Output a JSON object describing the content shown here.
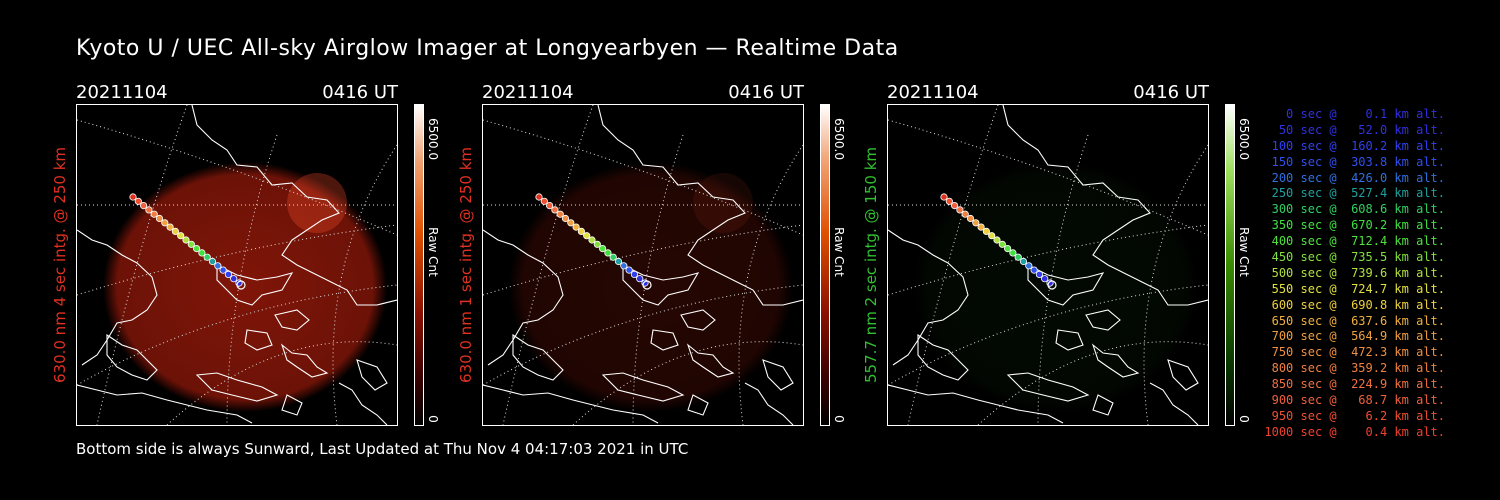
{
  "title": "Kyoto U / UEC All-sky Airglow Imager at Longyearbyen — Realtime Data",
  "footer": "Bottom side is always Sunward, Last Updated at Thu Nov  4 04:17:03 2021 in UTC",
  "panels": [
    {
      "date": "20211104",
      "time": "0416 UT",
      "ylabel": "630.0 nm 4 sec intg. @ 250 km",
      "ylabel_color": "#e03020",
      "cbar_max": "6500.0",
      "cbar_label": "Raw Cnt",
      "cbar_min": "0",
      "palette": "red",
      "intensity": 0.85
    },
    {
      "date": "20211104",
      "time": "0416 UT",
      "ylabel": "630.0 nm 1 sec intg. @ 250 km",
      "ylabel_color": "#e03020",
      "cbar_max": "6500.0",
      "cbar_label": "Raw Cnt",
      "cbar_min": "0",
      "palette": "red",
      "intensity": 0.25
    },
    {
      "date": "20211104",
      "time": "0416 UT",
      "ylabel": "557.7 nm 2 sec intg. @ 150 km",
      "ylabel_color": "#30c030",
      "cbar_max": "6500.0",
      "cbar_label": "Raw Cnt",
      "cbar_min": "0",
      "palette": "green",
      "intensity": 0.12
    }
  ],
  "legend": [
    {
      "text": "   0 sec @    0.1 km alt.",
      "color": "#3030e0"
    },
    {
      "text": "  50 sec @   52.0 km alt.",
      "color": "#3030e0"
    },
    {
      "text": " 100 sec @  160.2 km alt.",
      "color": "#3040f0"
    },
    {
      "text": " 150 sec @  303.8 km alt.",
      "color": "#3050f0"
    },
    {
      "text": " 200 sec @  426.0 km alt.",
      "color": "#3070e0"
    },
    {
      "text": " 250 sec @  527.4 km alt.",
      "color": "#20a0a0"
    },
    {
      "text": " 300 sec @  608.6 km alt.",
      "color": "#30d060"
    },
    {
      "text": " 350 sec @  670.2 km alt.",
      "color": "#40e040"
    },
    {
      "text": " 400 sec @  712.4 km alt.",
      "color": "#50e040"
    },
    {
      "text": " 450 sec @  735.5 km alt.",
      "color": "#80e040"
    },
    {
      "text": " 500 sec @  739.6 km alt.",
      "color": "#b0e040"
    },
    {
      "text": " 550 sec @  724.7 km alt.",
      "color": "#e0e040"
    },
    {
      "text": " 600 sec @  690.8 km alt.",
      "color": "#f0d040"
    },
    {
      "text": " 650 sec @  637.6 km alt.",
      "color": "#f0b040"
    },
    {
      "text": " 700 sec @  564.9 km alt.",
      "color": "#f0a040"
    },
    {
      "text": " 750 sec @  472.3 km alt.",
      "color": "#f09040"
    },
    {
      "text": " 800 sec @  359.2 km alt.",
      "color": "#f08040"
    },
    {
      "text": " 850 sec @  224.9 km alt.",
      "color": "#f07040"
    },
    {
      "text": " 900 sec @   68.7 km alt.",
      "color": "#f06040"
    },
    {
      "text": " 950 sec @    6.2 km alt.",
      "color": "#f05030"
    },
    {
      "text": "1000 sec @    0.4 km alt.",
      "color": "#f04030"
    }
  ],
  "colors": {
    "background": "#000000",
    "text": "#ffffff"
  }
}
